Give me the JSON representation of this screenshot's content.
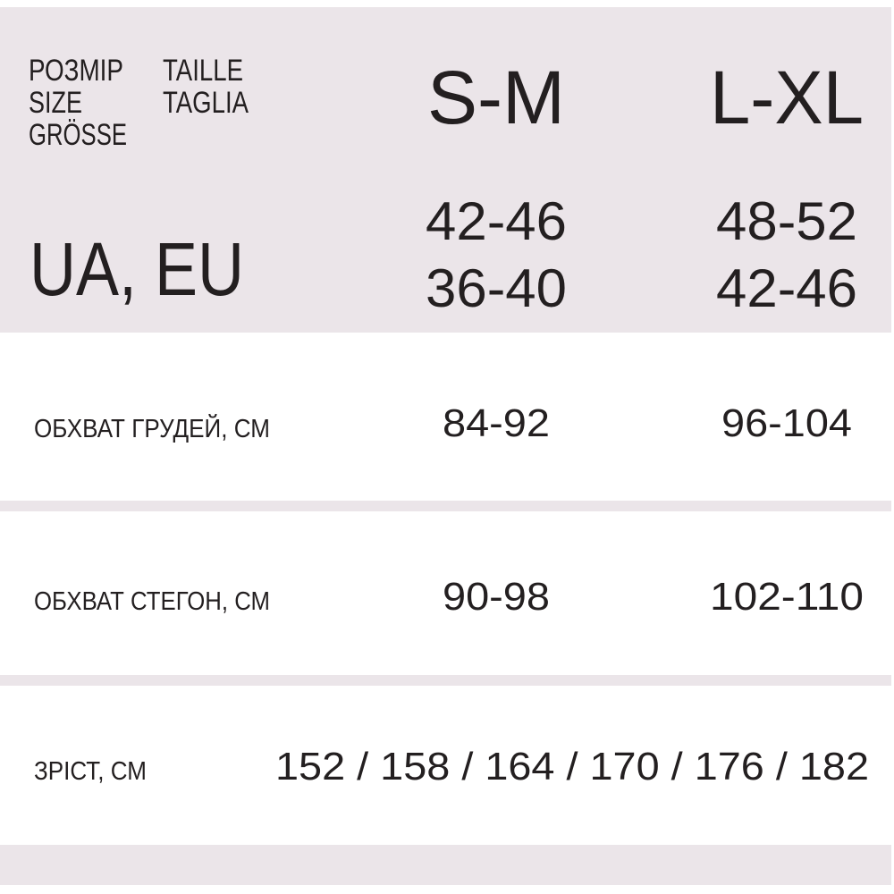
{
  "header": {
    "size_labels": [
      "РОЗМІР",
      "SIZE",
      "GRÖSSE"
    ],
    "size_labels_2": [
      "TAILLE",
      "TAGLIA"
    ],
    "sizes": [
      "S-M",
      "L-XL"
    ],
    "region": "UA, EU",
    "ua": [
      "42-46",
      "48-52"
    ],
    "eu": [
      "36-40",
      "42-46"
    ]
  },
  "rows": [
    {
      "label": "ОБХВАТ ГРУДЕЙ, СМ",
      "values": [
        "84-92",
        "96-104"
      ]
    },
    {
      "label": "ОБХВАТ СТЕГОН, СМ",
      "values": [
        "90-98",
        "102-110"
      ]
    },
    {
      "label": "ЗРІСТ, СМ",
      "value": "152 / 158 / 164 / 170 / 176 / 182"
    }
  ]
}
